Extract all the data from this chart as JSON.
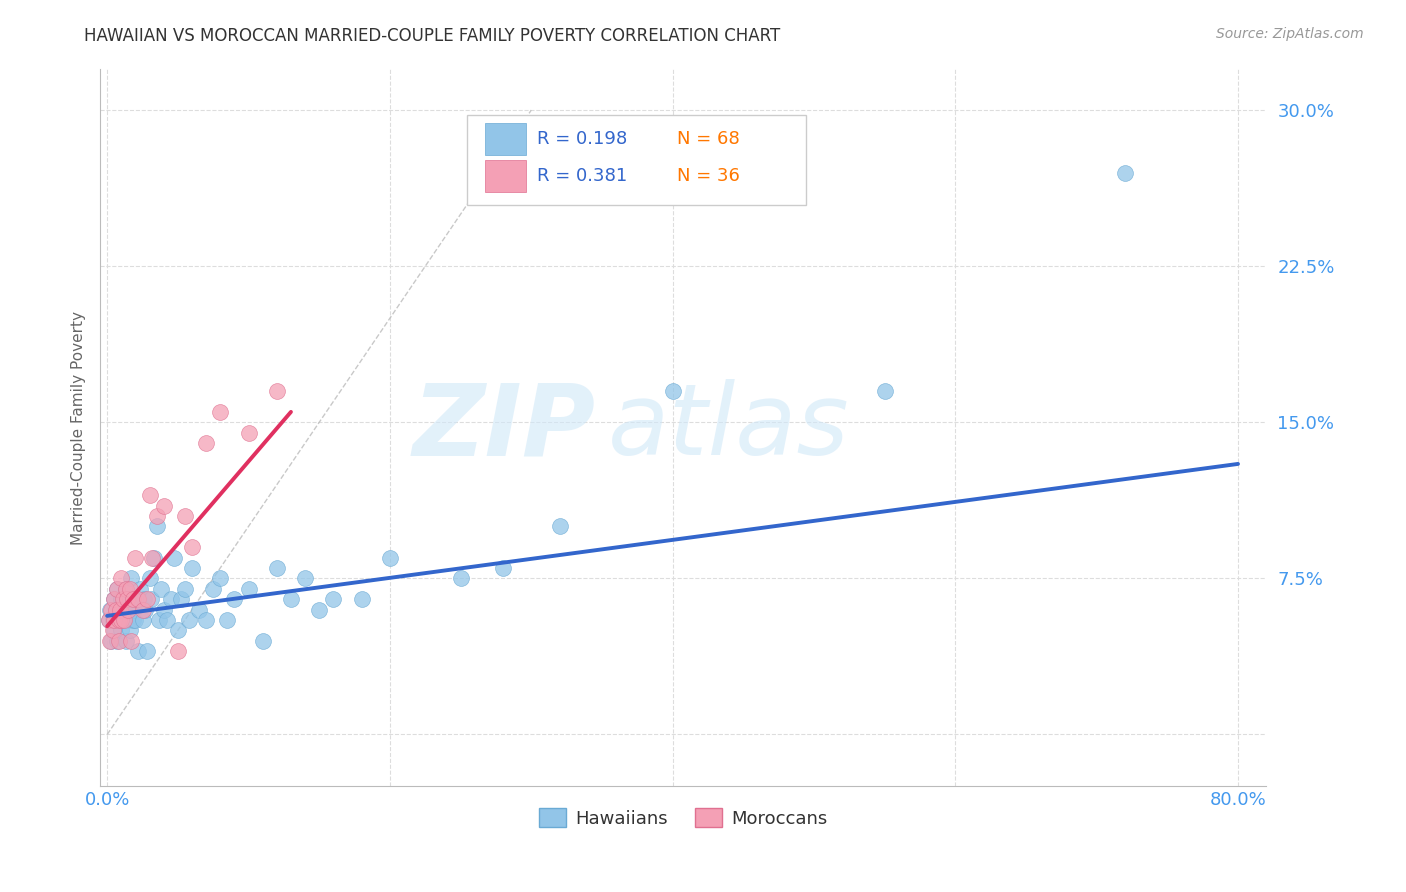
{
  "title": "HAWAIIAN VS MOROCCAN MARRIED-COUPLE FAMILY POVERTY CORRELATION CHART",
  "source": "Source: ZipAtlas.com",
  "ylabel": "Married-Couple Family Poverty",
  "ytick_positions": [
    0.0,
    0.075,
    0.15,
    0.225,
    0.3
  ],
  "ytick_labels": [
    "",
    "7.5%",
    "15.0%",
    "22.5%",
    "30.0%"
  ],
  "xtick_positions": [
    0.0,
    0.2,
    0.4,
    0.6,
    0.8
  ],
  "xtick_labels": [
    "0.0%",
    "",
    "",
    "",
    "80.0%"
  ],
  "xlim": [
    -0.005,
    0.82
  ],
  "ylim": [
    -0.025,
    0.32
  ],
  "watermark_zip": "ZIP",
  "watermark_atlas": "atlas",
  "legend_r1": "R = 0.198",
  "legend_n1": "N = 68",
  "legend_r2": "R = 0.381",
  "legend_n2": "N = 36",
  "hawaiian_color": "#92C5E8",
  "moroccan_color": "#F4A0B5",
  "hawaiian_edge_color": "#6AAAD4",
  "moroccan_edge_color": "#E07090",
  "hawaiian_line_color": "#3366CC",
  "moroccan_line_color": "#E03060",
  "diagonal_color": "#BBBBBB",
  "background_color": "#FFFFFF",
  "grid_color": "#DDDDDD",
  "axis_color": "#BBBBBB",
  "ytick_color": "#4499EE",
  "xtick_color": "#4499EE",
  "title_color": "#333333",
  "source_color": "#999999",
  "ylabel_color": "#666666",
  "hawaiians_x": [
    0.001,
    0.002,
    0.003,
    0.004,
    0.005,
    0.005,
    0.006,
    0.007,
    0.007,
    0.008,
    0.009,
    0.01,
    0.01,
    0.011,
    0.012,
    0.013,
    0.013,
    0.014,
    0.015,
    0.015,
    0.016,
    0.017,
    0.018,
    0.019,
    0.02,
    0.021,
    0.022,
    0.023,
    0.025,
    0.026,
    0.027,
    0.028,
    0.03,
    0.031,
    0.033,
    0.035,
    0.037,
    0.038,
    0.04,
    0.042,
    0.045,
    0.047,
    0.05,
    0.052,
    0.055,
    0.058,
    0.06,
    0.065,
    0.07,
    0.075,
    0.08,
    0.085,
    0.09,
    0.1,
    0.11,
    0.12,
    0.13,
    0.14,
    0.15,
    0.16,
    0.18,
    0.2,
    0.25,
    0.28,
    0.32,
    0.4,
    0.55,
    0.72
  ],
  "hawaiians_y": [
    0.055,
    0.06,
    0.045,
    0.055,
    0.05,
    0.065,
    0.06,
    0.045,
    0.07,
    0.055,
    0.06,
    0.05,
    0.065,
    0.055,
    0.06,
    0.07,
    0.045,
    0.06,
    0.055,
    0.065,
    0.05,
    0.075,
    0.055,
    0.06,
    0.055,
    0.065,
    0.04,
    0.07,
    0.055,
    0.065,
    0.06,
    0.04,
    0.075,
    0.065,
    0.085,
    0.1,
    0.055,
    0.07,
    0.06,
    0.055,
    0.065,
    0.085,
    0.05,
    0.065,
    0.07,
    0.055,
    0.08,
    0.06,
    0.055,
    0.07,
    0.075,
    0.055,
    0.065,
    0.07,
    0.045,
    0.08,
    0.065,
    0.075,
    0.06,
    0.065,
    0.065,
    0.085,
    0.075,
    0.08,
    0.1,
    0.165,
    0.165,
    0.27
  ],
  "moroccans_x": [
    0.001,
    0.002,
    0.003,
    0.004,
    0.005,
    0.005,
    0.006,
    0.007,
    0.008,
    0.008,
    0.009,
    0.01,
    0.01,
    0.011,
    0.012,
    0.013,
    0.014,
    0.015,
    0.016,
    0.017,
    0.018,
    0.02,
    0.022,
    0.025,
    0.028,
    0.03,
    0.032,
    0.035,
    0.04,
    0.05,
    0.055,
    0.06,
    0.07,
    0.08,
    0.1,
    0.12
  ],
  "moroccans_y": [
    0.055,
    0.045,
    0.06,
    0.05,
    0.055,
    0.065,
    0.06,
    0.07,
    0.045,
    0.055,
    0.06,
    0.055,
    0.075,
    0.065,
    0.055,
    0.07,
    0.065,
    0.06,
    0.07,
    0.045,
    0.065,
    0.085,
    0.065,
    0.06,
    0.065,
    0.115,
    0.085,
    0.105,
    0.11,
    0.04,
    0.105,
    0.09,
    0.14,
    0.155,
    0.145,
    0.165
  ],
  "hawaiian_trend_x": [
    0.0,
    0.8
  ],
  "hawaiian_trend_y": [
    0.057,
    0.13
  ],
  "moroccan_trend_x": [
    0.0,
    0.13
  ],
  "moroccan_trend_y": [
    0.052,
    0.155
  ]
}
